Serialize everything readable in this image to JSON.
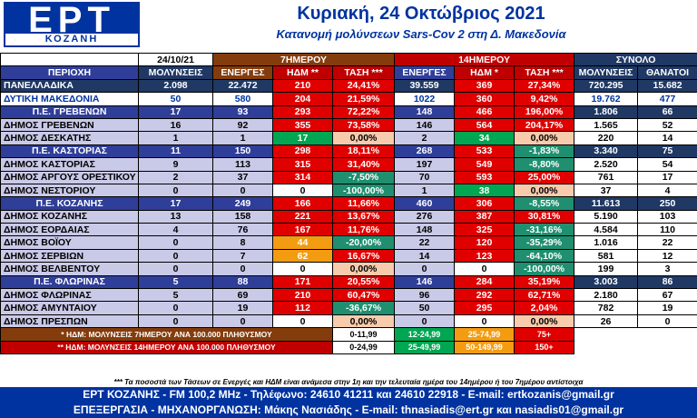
{
  "logo": {
    "main": "ΕΡΤ",
    "sub": "ΚΟΖΑΝΗ"
  },
  "title": "Κυριακή, 24 Οκτώβριος 2021",
  "subtitle": "Κατανομή μολύνσεων Sars-Cov 2 στη Δ. Μακεδονία",
  "header": {
    "date": "24/10/21",
    "group7": "7ΗΜΕΡΟΥ",
    "group14": "14ΗΜΕΡΟΥ",
    "total": "ΣΥΝΟΛΟ",
    "cols": [
      "ΠΕΡΙΟΧΗ",
      "ΜΟΛΥΝΣΕΙΣ",
      "ΕΝΕΡΓΕΣ",
      "ΗΔΜ **",
      "ΤΑΣΗ ***",
      "ΕΝΕΡΓΕΣ",
      "ΗΔΜ *",
      "ΤΑΣΗ ***",
      "ΜΟΛΥΝΣΕΙΣ",
      "ΘΑΝΑΤΟΙ"
    ]
  },
  "rows": [
    {
      "type": "nat",
      "cells": [
        "ΠΑΝΕΛΛΑΔΙΚΑ",
        "2.098",
        "22.472",
        "210",
        "24,41%",
        "39.559",
        "369",
        "27,34%",
        "720.295",
        "15.682"
      ],
      "c7": "c-red",
      "t7": "c-red",
      "c14": "c-red",
      "t14": "c-red"
    },
    {
      "type": "dyt",
      "cells": [
        "ΔΥΤΙΚΗ ΜΑΚΕΔΟΝΙΑ",
        "50",
        "580",
        "204",
        "21,59%",
        "1022",
        "360",
        "9,42%",
        "19.762",
        "477"
      ],
      "c7": "c-red",
      "t7": "c-red",
      "c14": "c-red",
      "t14": "c-red"
    },
    {
      "type": "pe",
      "cells": [
        "Π.Ε. ΓΡΕΒΕΝΩΝ",
        "17",
        "93",
        "293",
        "72,22%",
        "148",
        "466",
        "196,00%",
        "1.806",
        "66"
      ],
      "c7": "c-red",
      "t7": "c-red",
      "c14": "c-red",
      "t14": "c-red"
    },
    {
      "type": "mun",
      "cells": [
        "ΔΗΜΟΣ ΓΡΕΒΕΝΩΝ",
        "16",
        "92",
        "355",
        "73,58%",
        "146",
        "564",
        "204,17%",
        "1.565",
        "52"
      ],
      "c7": "c-red",
      "t7": "c-red",
      "c14": "c-red",
      "t14": "c-red"
    },
    {
      "type": "mun",
      "cells": [
        "ΔΗΜΟΣ ΔΕΣΚΑΤΗΣ",
        "1",
        "1",
        "17",
        "0,00%",
        "2",
        "34",
        "0,00%",
        "220",
        "14"
      ],
      "c7": "c-green",
      "t7": "c-peach",
      "c14": "c-green",
      "t14": "c-peach"
    },
    {
      "type": "pe",
      "cells": [
        "Π.Ε. ΚΑΣΤΟΡΙΑΣ",
        "11",
        "150",
        "298",
        "18,11%",
        "268",
        "533",
        "-1,83%",
        "3.340",
        "75"
      ],
      "c7": "c-red",
      "t7": "c-red",
      "c14": "c-red",
      "t14": "c-teal"
    },
    {
      "type": "mun",
      "cells": [
        "ΔΗΜΟΣ ΚΑΣΤΟΡΙΑΣ",
        "9",
        "113",
        "315",
        "31,40%",
        "197",
        "549",
        "-8,80%",
        "2.520",
        "54"
      ],
      "c7": "c-red",
      "t7": "c-red",
      "c14": "c-red",
      "t14": "c-teal"
    },
    {
      "type": "mun",
      "cells": [
        "ΔΗΜΟΣ ΑΡΓΟΥΣ ΟΡΕΣΤΙΚΟΥ",
        "2",
        "37",
        "314",
        "-7,50%",
        "70",
        "593",
        "25,00%",
        "761",
        "17"
      ],
      "c7": "c-red",
      "t7": "c-teal",
      "c14": "c-red",
      "t14": "c-red"
    },
    {
      "type": "mun",
      "cells": [
        "ΔΗΜΟΣ ΝΕΣΤΟΡΙΟΥ",
        "0",
        "0",
        "0",
        "-100,00%",
        "1",
        "38",
        "0,00%",
        "37",
        "4"
      ],
      "c7": "c-white",
      "t7": "c-teal",
      "c14": "c-green",
      "t14": "c-peach"
    },
    {
      "type": "pe",
      "cells": [
        "Π.Ε. ΚΟΖΑΝΗΣ",
        "17",
        "249",
        "166",
        "11,66%",
        "460",
        "306",
        "-8,55%",
        "11.613",
        "250"
      ],
      "c7": "c-red",
      "t7": "c-red",
      "c14": "c-red",
      "t14": "c-teal"
    },
    {
      "type": "mun",
      "cells": [
        "ΔΗΜΟΣ ΚΟΖΑΝΗΣ",
        "13",
        "158",
        "221",
        "13,67%",
        "276",
        "387",
        "30,81%",
        "5.190",
        "103"
      ],
      "c7": "c-red",
      "t7": "c-red",
      "c14": "c-red",
      "t14": "c-red"
    },
    {
      "type": "mun",
      "cells": [
        "ΔΗΜΟΣ ΕΟΡΔΑΙΑΣ",
        "4",
        "76",
        "167",
        "11,76%",
        "148",
        "325",
        "-31,16%",
        "4.584",
        "110"
      ],
      "c7": "c-red",
      "t7": "c-red",
      "c14": "c-red",
      "t14": "c-teal"
    },
    {
      "type": "mun",
      "cells": [
        "ΔΗΜΟΣ ΒΟΪΟΥ",
        "0",
        "8",
        "44",
        "-20,00%",
        "22",
        "120",
        "-35,29%",
        "1.016",
        "22"
      ],
      "c7": "c-orange",
      "t7": "c-teal",
      "c14": "c-red",
      "t14": "c-teal"
    },
    {
      "type": "mun",
      "cells": [
        "ΔΗΜΟΣ ΣΕΡΒΙΩΝ",
        "0",
        "7",
        "62",
        "16,67%",
        "14",
        "123",
        "-64,10%",
        "581",
        "12"
      ],
      "c7": "c-orange",
      "t7": "c-red",
      "c14": "c-red",
      "t14": "c-teal"
    },
    {
      "type": "mun",
      "cells": [
        "ΔΗΜΟΣ ΒΕΛΒΕΝΤΟΥ",
        "0",
        "0",
        "0",
        "0,00%",
        "0",
        "0",
        "-100,00%",
        "199",
        "3"
      ],
      "c7": "c-white",
      "t7": "c-peach",
      "c14": "c-white",
      "t14": "c-teal"
    },
    {
      "type": "pe",
      "cells": [
        "Π.Ε. ΦΛΩΡΙΝΑΣ",
        "5",
        "88",
        "171",
        "20,55%",
        "146",
        "284",
        "35,19%",
        "3.003",
        "86"
      ],
      "c7": "c-red",
      "t7": "c-red",
      "c14": "c-red",
      "t14": "c-red"
    },
    {
      "type": "mun",
      "cells": [
        "ΔΗΜΟΣ ΦΛΩΡΙΝΑΣ",
        "5",
        "69",
        "210",
        "60,47%",
        "96",
        "292",
        "62,71%",
        "2.180",
        "67"
      ],
      "c7": "c-red",
      "t7": "c-red",
      "c14": "c-red",
      "t14": "c-red"
    },
    {
      "type": "mun",
      "cells": [
        "ΔΗΜΟΣ ΑΜΥΝΤΑΙΟΥ",
        "0",
        "19",
        "112",
        "-36,67%",
        "50",
        "295",
        "2,04%",
        "782",
        "19"
      ],
      "c7": "c-red",
      "t7": "c-teal",
      "c14": "c-red",
      "t14": "c-red"
    },
    {
      "type": "mun",
      "cells": [
        "ΔΗΜΟΣ ΠΡΕΣΠΩΝ",
        "0",
        "0",
        "0",
        "0,00%",
        "0",
        "0",
        "0,00%",
        "26",
        "0"
      ],
      "c7": "c-white",
      "t7": "c-peach",
      "c14": "c-white",
      "t14": "c-peach"
    }
  ],
  "legend": [
    {
      "label": "* ΗΔΜ: ΜΟΛΥΝΣΕΙΣ 7ΗΜΕΡΟΥ ΑΝΑ 100.000 ΠΛΗΘΥΣΜΟΥ",
      "ranges": [
        "0-11,99",
        "12-24,99",
        "25-74,99",
        "75+"
      ]
    },
    {
      "label": "** ΗΔΜ: ΜΟΛΥΝΣΕΙΣ 14ΗΜΕΡΟΥ ΑΝΑ 100.000 ΠΛΗΘΥΣΜΟΥ",
      "ranges": [
        "0-24,99",
        "25-49,99",
        "50-149,99",
        "150+"
      ]
    }
  ],
  "colors": {
    "blue": "#0033a0",
    "red": "#e00000",
    "green": "#00a651",
    "orange": "#f39c12",
    "teal": "#1f8f70",
    "peach": "#f8cbad",
    "navy": "#1f3864"
  },
  "footer": {
    "note": "*** Τα ποσοστά των Τάσεων σε Ενεργές και ΗΔΜ είναι ανάμεσα στην 1η και την τελευταία ημέρα του 14ημέρου ή του 7ημέρου αντίστοιχα",
    "line1": "ΕΡΤ ΚΟΖΑΝΗΣ - FM 100,2 MHz - Τηλέφωνο:  24610 41211 και 24610 22918  - E-mail: ertkozanis@gmail.gr",
    "line2": "ΕΠΕΞΕΡΓΑΣΙΑ  -  ΜΗΧΑΝΟΡΓΑΝΩΣΗ: Μάκης Νασιάδης  -  E-mail: thnasiadis@ert.gr και nasiadis01@gmail.gr"
  }
}
